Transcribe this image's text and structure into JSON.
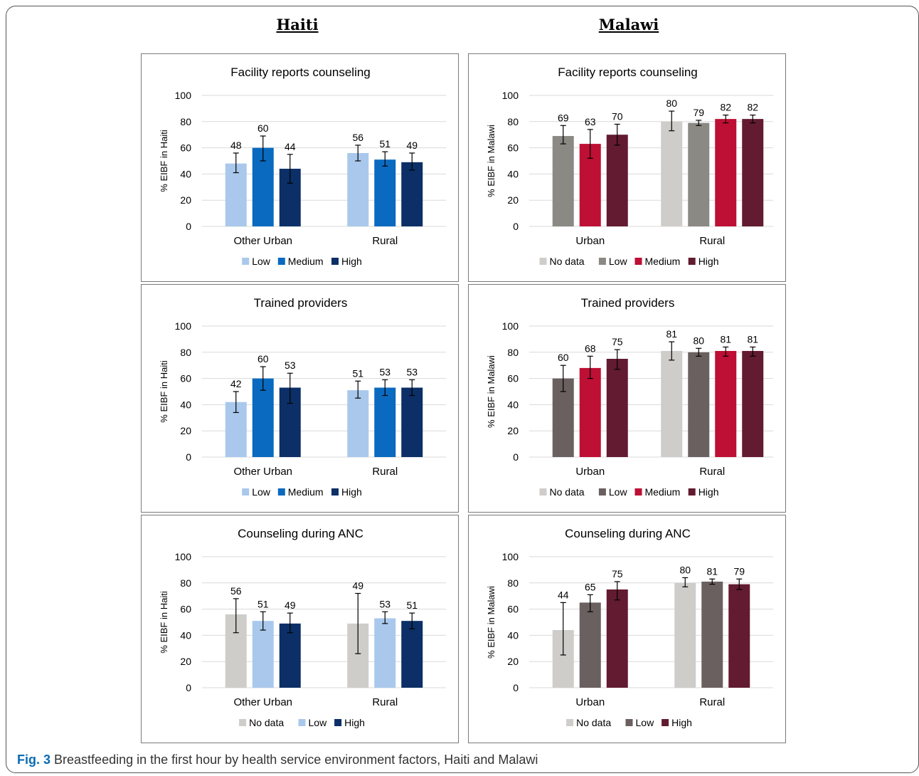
{
  "columns": {
    "left": "Haiti",
    "right": "Malawi"
  },
  "caption": {
    "label": "Fig. 3",
    "text": "Breastfeeding in the first hour by health service environment factors, Haiti and Malawi"
  },
  "colors": {
    "no_data": "#cfcdca",
    "haiti_low": "#a9c8ec",
    "haiti_medium": "#0a6abf",
    "haiti_high": "#0b2f66",
    "malawi_low_1": "#8b8984",
    "malawi_low_2": "#6b6060",
    "malawi_medium": "#be0f34",
    "malawi_high": "#621b30",
    "error_bar": "#000000",
    "gridline": "#d9d9d9"
  },
  "chart_data": [
    {
      "type": "bar",
      "title": "Facility reports counseling",
      "ylabel": "% EIBF in Haiti",
      "ylim": [
        0,
        100
      ],
      "yticks": [
        "0",
        "20",
        "40",
        "60",
        "80",
        "100"
      ],
      "categories": [
        "Other Urban",
        "Rural"
      ],
      "series": [
        {
          "name": "Low",
          "color": "#a9c8ec",
          "values": [
            48,
            56
          ],
          "labels": [
            "48",
            "56"
          ],
          "err_low": [
            41,
            50
          ],
          "err_high": [
            56,
            62
          ]
        },
        {
          "name": "Medium",
          "color": "#0a6abf",
          "values": [
            60,
            51
          ],
          "labels": [
            "60",
            "51"
          ],
          "err_low": [
            50,
            46
          ],
          "err_high": [
            69,
            57
          ]
        },
        {
          "name": "High",
          "color": "#0b2f66",
          "values": [
            44,
            49
          ],
          "labels": [
            "44",
            "49"
          ],
          "err_low": [
            33,
            43
          ],
          "err_high": [
            55,
            56
          ]
        }
      ],
      "legend": "bottom"
    },
    {
      "type": "bar",
      "title": "Facility reports counseling",
      "ylabel": "% EIBF in Malawi",
      "ylim": [
        0,
        100
      ],
      "yticks": [
        "0",
        "20",
        "40",
        "60",
        "80",
        "100"
      ],
      "categories": [
        "Urban",
        "Rural"
      ],
      "series": [
        {
          "name": "No data",
          "color": "#cfcdca",
          "values": [
            null,
            80
          ],
          "labels": [
            "",
            "80"
          ],
          "err_low": [
            null,
            73
          ],
          "err_high": [
            null,
            88
          ]
        },
        {
          "name": "Low",
          "color": "#8b8984",
          "values": [
            69,
            79
          ],
          "labels": [
            "69",
            "79"
          ],
          "err_low": [
            63,
            77
          ],
          "err_high": [
            77,
            81
          ]
        },
        {
          "name": "Medium",
          "color": "#be0f34",
          "values": [
            63,
            82
          ],
          "labels": [
            "63",
            "82"
          ],
          "err_low": [
            52,
            79
          ],
          "err_high": [
            74,
            85
          ]
        },
        {
          "name": "High",
          "color": "#621b30",
          "values": [
            70,
            82
          ],
          "labels": [
            "70",
            "82"
          ],
          "err_low": [
            62,
            79
          ],
          "err_high": [
            78,
            85
          ]
        }
      ],
      "legend": "bottom"
    },
    {
      "type": "bar",
      "title": "Trained providers",
      "ylabel": "% EIBF in Haiti",
      "ylim": [
        0,
        100
      ],
      "yticks": [
        "0",
        "20",
        "40",
        "60",
        "80",
        "100"
      ],
      "categories": [
        "Other Urban",
        "Rural"
      ],
      "series": [
        {
          "name": "Low",
          "color": "#a9c8ec",
          "values": [
            42,
            51
          ],
          "labels": [
            "42",
            "51"
          ],
          "err_low": [
            34,
            45
          ],
          "err_high": [
            50,
            58
          ]
        },
        {
          "name": "Medium",
          "color": "#0a6abf",
          "values": [
            60,
            53
          ],
          "labels": [
            "60",
            "53"
          ],
          "err_low": [
            51,
            47
          ],
          "err_high": [
            69,
            59
          ]
        },
        {
          "name": "High",
          "color": "#0b2f66",
          "values": [
            53,
            53
          ],
          "labels": [
            "53",
            "53"
          ],
          "err_low": [
            41,
            47
          ],
          "err_high": [
            64,
            59
          ]
        }
      ],
      "legend": "bottom"
    },
    {
      "type": "bar",
      "title": "Trained providers",
      "ylabel": "% EIBF in Malawi",
      "ylim": [
        0,
        100
      ],
      "yticks": [
        "0",
        "20",
        "40",
        "60",
        "80",
        "100"
      ],
      "categories": [
        "Urban",
        "Rural"
      ],
      "series": [
        {
          "name": "No data",
          "color": "#cfcdca",
          "values": [
            null,
            81
          ],
          "labels": [
            "",
            "81"
          ],
          "err_low": [
            null,
            74
          ],
          "err_high": [
            null,
            88
          ]
        },
        {
          "name": "Low",
          "color": "#6b6060",
          "values": [
            60,
            80
          ],
          "labels": [
            "60",
            "80"
          ],
          "err_low": [
            50,
            77
          ],
          "err_high": [
            70,
            83
          ]
        },
        {
          "name": "Medium",
          "color": "#be0f34",
          "values": [
            68,
            81
          ],
          "labels": [
            "68",
            "81"
          ],
          "err_low": [
            60,
            77
          ],
          "err_high": [
            77,
            84
          ]
        },
        {
          "name": "High",
          "color": "#621b30",
          "values": [
            75,
            81
          ],
          "labels": [
            "75",
            "81"
          ],
          "err_low": [
            67,
            77
          ],
          "err_high": [
            82,
            84
          ]
        }
      ],
      "legend": "bottom"
    },
    {
      "type": "bar",
      "title": "Counseling during ANC",
      "ylabel": "% EIBF in Haiti",
      "ylim": [
        0,
        100
      ],
      "yticks": [
        "0",
        "20",
        "40",
        "60",
        "80",
        "100"
      ],
      "categories": [
        "Other Urban",
        "Rural"
      ],
      "series": [
        {
          "name": "No data",
          "color": "#cfcdca",
          "values": [
            56,
            49
          ],
          "labels": [
            "56",
            "49"
          ],
          "err_low": [
            42,
            26
          ],
          "err_high": [
            68,
            72
          ]
        },
        {
          "name": "Low",
          "color": "#a9c8ec",
          "values": [
            51,
            53
          ],
          "labels": [
            "51",
            "53"
          ],
          "err_low": [
            44,
            49
          ],
          "err_high": [
            58,
            58
          ]
        },
        {
          "name": "High",
          "color": "#0b2f66",
          "values": [
            49,
            51
          ],
          "labels": [
            "49",
            "51"
          ],
          "err_low": [
            42,
            45
          ],
          "err_high": [
            57,
            57
          ]
        }
      ],
      "legend": "bottom"
    },
    {
      "type": "bar",
      "title": "Counseling during ANC",
      "ylabel": "% EIBF in Malawi",
      "ylim": [
        0,
        100
      ],
      "yticks": [
        "0",
        "20",
        "40",
        "60",
        "80",
        "100"
      ],
      "categories": [
        "Urban",
        "Rural"
      ],
      "series": [
        {
          "name": "No data",
          "color": "#cfcdca",
          "values": [
            44,
            80
          ],
          "labels": [
            "44",
            "80"
          ],
          "err_low": [
            25,
            77
          ],
          "err_high": [
            65,
            84
          ]
        },
        {
          "name": "Low",
          "color": "#6b6060",
          "values": [
            65,
            81
          ],
          "labels": [
            "65",
            "81"
          ],
          "err_low": [
            58,
            79
          ],
          "err_high": [
            71,
            83
          ]
        },
        {
          "name": "High",
          "color": "#621b30",
          "values": [
            75,
            79
          ],
          "labels": [
            "75",
            "79"
          ],
          "err_low": [
            67,
            75
          ],
          "err_high": [
            81,
            83
          ]
        }
      ],
      "legend": "bottom"
    }
  ]
}
